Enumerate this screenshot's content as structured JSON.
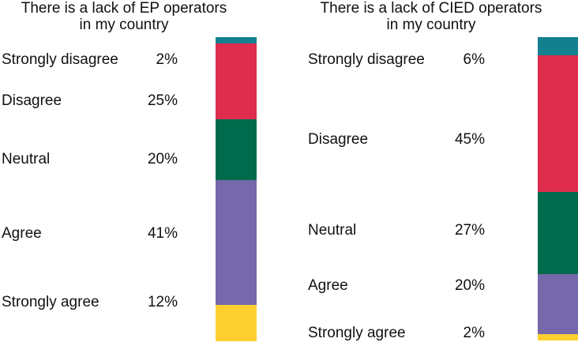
{
  "figure": {
    "background": "#ffffff",
    "text_color": "#111111"
  },
  "palette": {
    "strongly_disagree": "#13808e",
    "disagree": "#df2d4e",
    "neutral": "#006b4c",
    "agree": "#7668ab",
    "strongly_agree": "#fdd030"
  },
  "chart_data": [
    {
      "type": "bar",
      "stacked": true,
      "orientation": "vertical",
      "title": "There is a lack of EP operators in my country",
      "title_lines": [
        "There is a lack of EP operators",
        "in my country"
      ],
      "categories": [
        "Strongly disagree",
        "Disagree",
        "Neutral",
        "Agree",
        "Strongly agree"
      ],
      "values": [
        2,
        25,
        20,
        41,
        12
      ],
      "value_labels": [
        "2%",
        "25%",
        "20%",
        "41%",
        "12%"
      ],
      "colors": [
        "#13808e",
        "#df2d4e",
        "#006b4c",
        "#7668ab",
        "#fdd030"
      ],
      "unit": "%",
      "total": 100,
      "legend": "none",
      "axes": "none",
      "grid": false
    },
    {
      "type": "bar",
      "stacked": true,
      "orientation": "vertical",
      "title": "There is a lack of CIED operators in my country",
      "title_lines": [
        "There is a lack of CIED operators",
        "in my country"
      ],
      "categories": [
        "Strongly disagree",
        "Disagree",
        "Neutral",
        "Agree",
        "Strongly agree"
      ],
      "values": [
        6,
        45,
        27,
        20,
        2
      ],
      "value_labels": [
        "6%",
        "45%",
        "27%",
        "20%",
        "2%"
      ],
      "colors": [
        "#13808e",
        "#df2d4e",
        "#006b4c",
        "#7668ab",
        "#fdd030"
      ],
      "unit": "%",
      "total": 100,
      "legend": "none",
      "axes": "none",
      "grid": false
    }
  ]
}
